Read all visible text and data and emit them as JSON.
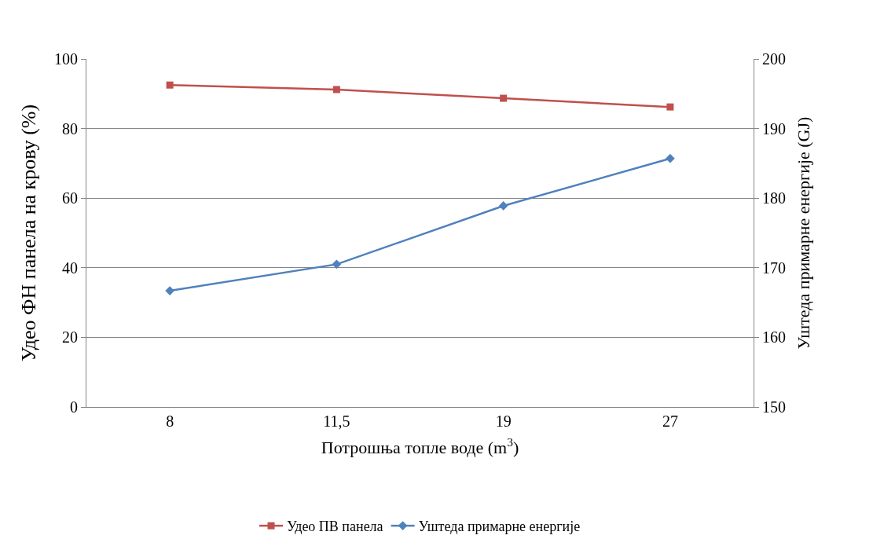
{
  "chart_data": {
    "type": "line",
    "categories": [
      "8",
      "11,5",
      "19",
      "27"
    ],
    "xlabel": "Потрошња топле воде (m$^{3}$)",
    "ylabel": "Удео ФН панела на крову (%)",
    "y2label": "Уштеда примарне енергије (GJ)",
    "ylim": [
      0,
      100
    ],
    "yticks": [
      0,
      20,
      40,
      60,
      80,
      100
    ],
    "y2lim": [
      150,
      200
    ],
    "y2ticks": [
      150,
      160,
      170,
      180,
      190,
      200
    ],
    "grid": "y",
    "legend": "bottom",
    "series": [
      {
        "name": "Удео ПВ панела",
        "color": "#c0504d",
        "marker": "square",
        "values": [
          92.5,
          91.2,
          88.7,
          86.2
        ]
      },
      {
        "name": "Уштеда примарне енергије",
        "color": "#4f81bd",
        "marker": "diamond",
        "axis": "y2",
        "values": [
          166.7,
          170.5,
          178.9,
          185.7
        ]
      }
    ]
  }
}
